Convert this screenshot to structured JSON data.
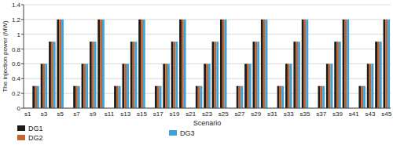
{
  "chart_data": {
    "type": "bar",
    "x_label": "Scenario",
    "y_label": "The injection power (MW)",
    "categories": [
      "s1",
      null,
      "s3",
      null,
      "s5",
      null,
      "s7",
      null,
      "s9",
      null,
      "s11",
      null,
      "s13",
      null,
      "s15",
      null,
      "s17",
      null,
      "s19",
      null,
      "s21",
      null,
      "s23",
      null,
      "s25",
      null,
      "s27",
      null,
      "s29",
      null,
      "s31",
      null,
      "s33",
      null,
      "s35",
      null,
      "s37",
      null,
      "s39",
      null,
      "s41",
      null,
      "s43",
      null,
      "s45"
    ],
    "series": [
      {
        "name": "DG1",
        "color": "#1c1c1c",
        "values": [
          0,
          0.3,
          0.6,
          0.9,
          1.2,
          0,
          0.3,
          0.6,
          0.9,
          1.2,
          0,
          0.3,
          0.6,
          0.9,
          1.2,
          0,
          0.3,
          0.6,
          0.9,
          1.2,
          0,
          0.3,
          0.6,
          0.9,
          1.2,
          0,
          0.3,
          0.6,
          0.9,
          1.2,
          0,
          0.3,
          0.6,
          0.9,
          1.2,
          0,
          0.3,
          0.6,
          0.9,
          1.2,
          0,
          0.3,
          0.6,
          0.9,
          1.2
        ]
      },
      {
        "name": "DG2",
        "color": "#c4652e",
        "values": [
          0,
          0.3,
          0.6,
          0.9,
          1.2,
          0,
          0.3,
          0.6,
          0.9,
          1.2,
          0,
          0.3,
          0.6,
          0.9,
          1.2,
          0,
          0.3,
          0.6,
          0.9,
          1.2,
          0,
          0.3,
          0.6,
          0.9,
          1.2,
          0,
          0.3,
          0.6,
          0.9,
          1.2,
          0,
          0.3,
          0.6,
          0.9,
          1.2,
          0,
          0.3,
          0.6,
          0.9,
          1.2,
          0,
          0.3,
          0.6,
          0.9,
          1.2
        ]
      },
      {
        "name": "DG3",
        "color": "#3ba3dc",
        "values": [
          0,
          0.3,
          0.6,
          0.9,
          1.2,
          0,
          0.3,
          0.6,
          0.9,
          1.2,
          0,
          0.3,
          0.6,
          0.9,
          1.2,
          0,
          0.3,
          0.6,
          0.9,
          1.2,
          0,
          0.3,
          0.6,
          0.9,
          1.2,
          0,
          0.3,
          0.6,
          0.9,
          1.2,
          0,
          0.3,
          0.6,
          0.9,
          1.2,
          0,
          0.3,
          0.6,
          0.9,
          1.2,
          0,
          0.3,
          0.6,
          0.9,
          1.2
        ]
      }
    ],
    "ylim": [
      0,
      1.4
    ],
    "yticks": [
      0,
      0.2,
      0.4,
      0.6,
      0.8,
      1,
      1.2,
      1.4
    ],
    "grid": true,
    "legend": "bottom"
  }
}
